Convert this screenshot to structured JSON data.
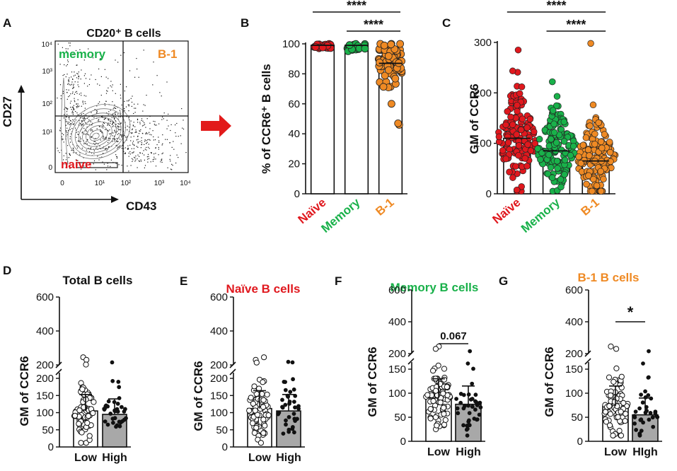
{
  "colors": {
    "naive": "#e0181e",
    "memory": "#19b14a",
    "b1": "#ef8a24",
    "bar_gray": "#a8a8a8",
    "ink": "#111111",
    "arrow": "#e21a1a"
  },
  "panel_a": {
    "label": "A",
    "title": "CD20⁺ B cells",
    "x_axis_label": "CD43",
    "y_axis_label": "CD27",
    "x_ticks": [
      "0",
      "10¹",
      "10²",
      "10³",
      "10⁴"
    ],
    "y_ticks": [
      "10⁴",
      "10³",
      "10²",
      "10¹",
      "0"
    ],
    "gate_memory": "memory",
    "gate_b1": "B-1",
    "gate_naive": "naive"
  },
  "chart_data": [
    {
      "panel": "B",
      "type": "bar",
      "categories": [
        "Naïve",
        "Memory",
        "B-1"
      ],
      "values": [
        99,
        99,
        87
      ],
      "ylabel": "% of CCR6⁺ B cells",
      "ylim": [
        0,
        100
      ],
      "y_ticks": [
        0,
        20,
        40,
        60,
        80,
        100
      ],
      "significance": [
        {
          "from": "Naïve",
          "to": "B-1",
          "label": "****"
        },
        {
          "from": "Memory",
          "to": "B-1",
          "label": "****"
        }
      ]
    },
    {
      "panel": "C",
      "type": "bar",
      "categories": [
        "Naïve",
        "Memory",
        "B-1"
      ],
      "values": [
        110,
        85,
        65
      ],
      "ylabel": "GM of CCR6",
      "ylim": [
        0,
        300
      ],
      "y_ticks": [
        0,
        100,
        200,
        300
      ],
      "significance": [
        {
          "from": "Naïve",
          "to": "B-1",
          "label": "****"
        },
        {
          "from": "Memory",
          "to": "B-1",
          "label": "****"
        }
      ]
    },
    {
      "panel": "D",
      "type": "bar",
      "title": "Total B cells",
      "categories": [
        "Low",
        "High"
      ],
      "values": [
        105,
        95
      ],
      "sd": [
        48,
        45
      ],
      "ylabel": "GM of CCR6",
      "y_ticks_lower": [
        0,
        50,
        100,
        150,
        200
      ],
      "y_ticks_upper": [
        200,
        400,
        600
      ]
    },
    {
      "panel": "E",
      "type": "bar",
      "title": "Naïve B cells",
      "categories": [
        "Low",
        "High"
      ],
      "values": [
        112,
        105
      ],
      "sd": [
        52,
        48
      ],
      "ylabel": "GM of CCR6",
      "y_ticks_lower": [
        0,
        50,
        100,
        150,
        200
      ],
      "y_ticks_upper": [
        200,
        400,
        600
      ]
    },
    {
      "panel": "F",
      "type": "bar",
      "title": "Memory B cells",
      "categories": [
        "Low",
        "High"
      ],
      "values": [
        90,
        77
      ],
      "sd": [
        40,
        38
      ],
      "ylabel": "GM of CCR6",
      "y_ticks_lower": [
        0,
        50,
        100,
        150
      ],
      "y_ticks_upper": [
        200,
        400,
        600
      ],
      "significance": [
        {
          "from": "Low",
          "to": "High",
          "label": "0.067"
        }
      ]
    },
    {
      "panel": "G",
      "type": "bar",
      "title": "B-1 B cells",
      "categories": [
        "Low",
        "HIgh"
      ],
      "values": [
        73,
        55
      ],
      "sd": [
        42,
        35
      ],
      "ylabel": "GM of CCR6",
      "y_ticks_lower": [
        0,
        50,
        100,
        150
      ],
      "y_ticks_upper": [
        200,
        400,
        600
      ],
      "significance": [
        {
          "from": "Low",
          "to": "HIgh",
          "label": "*"
        }
      ]
    }
  ]
}
